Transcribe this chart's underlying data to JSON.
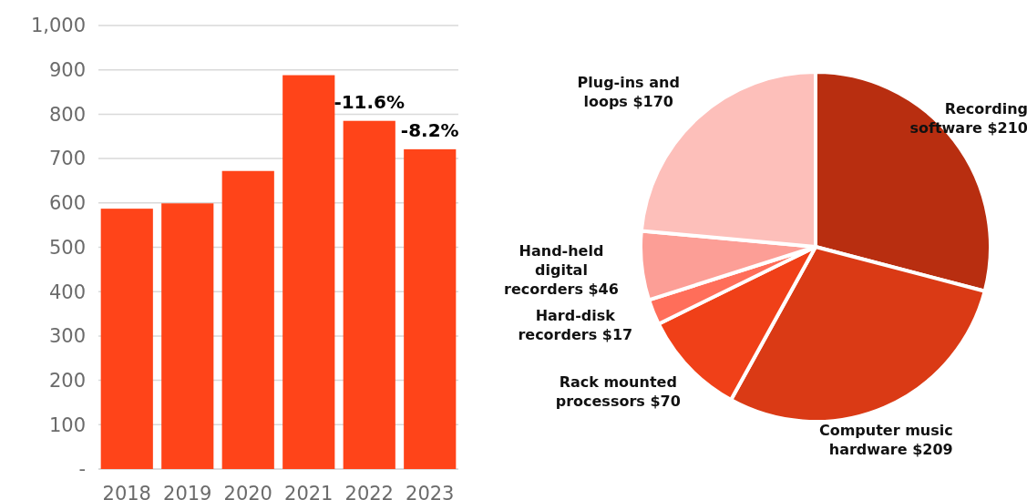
{
  "chart_data": [
    {
      "type": "bar",
      "categories": [
        "2018",
        "2019",
        "2020",
        "2021",
        "2022",
        "2023"
      ],
      "values": [
        587,
        599,
        672,
        888,
        785,
        721
      ],
      "color": "#ff4419",
      "ylim": [
        0,
        1000
      ],
      "yticks": [
        {
          "value": 0,
          "label": "-"
        },
        100,
        200,
        300,
        400,
        500,
        600,
        700,
        800,
        900,
        {
          "value": 1000,
          "label": "1,000"
        }
      ],
      "grid": "y",
      "annotations": [
        {
          "text": "-11.6%",
          "x": "2022",
          "y": 785
        },
        {
          "text": "-8.2%",
          "x": "2023",
          "y": 721
        }
      ]
    },
    {
      "type": "pie",
      "categories": [
        "Recording software",
        "Computer music hardware",
        "Rack mounted processors",
        "Hard-disk recorders",
        "Hand-held digital recorders",
        "Plug-ins and loops"
      ],
      "values": [
        210,
        209,
        70,
        17,
        46,
        170
      ],
      "colors": [
        "#b82e10",
        "#da3a15",
        "#f04018",
        "#ff6e5a",
        "#fc9e96",
        "#fdbfba"
      ],
      "value_labels": [
        "$210",
        "$209",
        "$70",
        "$17",
        "$46",
        "$170"
      ]
    }
  ]
}
